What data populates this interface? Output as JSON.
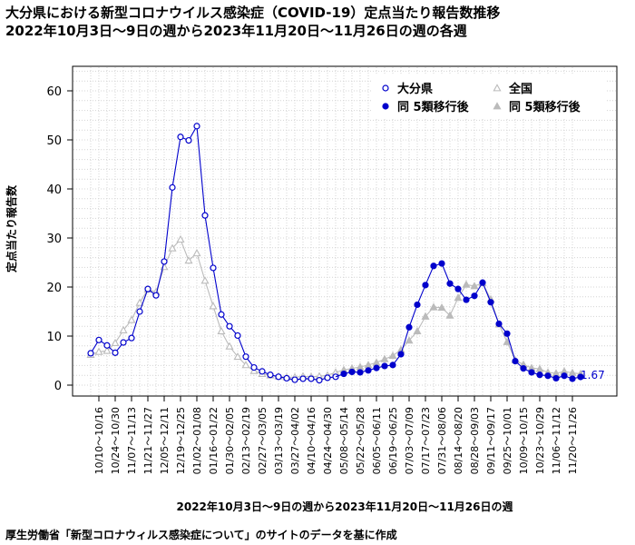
{
  "header": {
    "title_line1": "大分県における新型コロナウイルス感染症（COVID-19）定点当たり報告数推移",
    "title_line2": "2022年10月3日～9日の週から2023年11月20日～11月26日の週の各週"
  },
  "footer": {
    "source": "厚生労働省「新型コロナウィルス感染症について」のサイトのデータを基に作成"
  },
  "chart_data": {
    "type": "line",
    "title": "大分県における新型コロナウイルス感染症（COVID-19）定点当たり報告数推移",
    "subtitle": "2022年10月3日～9日の週から2023年11月20日～11月26日の週の各週",
    "xlabel": "2022年10月3日～9日の週から2023年11月20日～11月26日の週",
    "ylabel": "定点当たり報告数",
    "ylim": [
      -2,
      66
    ],
    "yticks": [
      0,
      10,
      20,
      30,
      40,
      50,
      60
    ],
    "grid": true,
    "legend_position": "top-right",
    "end_label": "1.67",
    "x_tick_labels": [
      "10/10～10/16",
      "10/24～10/30",
      "11/07～11/13",
      "11/21～11/27",
      "12/05～12/11",
      "12/19～12/25",
      "01/02～01/08",
      "01/16～01/22",
      "01/30～02/05",
      "02/13～02/19",
      "02/27～03/05",
      "03/13～03/19",
      "03/27～04/02",
      "04/10～04/16",
      "04/24～04/30",
      "05/08～05/14",
      "05/22～05/28",
      "06/05～06/11",
      "06/19～06/25",
      "07/03～07/09",
      "07/17～07/23",
      "07/31～08/06",
      "08/14～08/20",
      "08/28～09/03",
      "09/11～09/17",
      "09/25～10/01",
      "10/09～10/15",
      "10/23～10/29",
      "11/06～11/12",
      "11/20～11/26"
    ],
    "x_weeks": [
      "10/03～10/09",
      "10/10～10/16",
      "10/17～10/23",
      "10/24～10/30",
      "10/31～11/06",
      "11/07～11/13",
      "11/14～11/20",
      "11/21～11/27",
      "11/28～12/04",
      "12/05～12/11",
      "12/12～12/18",
      "12/19～12/25",
      "12/26～01/01",
      "01/02～01/08",
      "01/09～01/15",
      "01/16～01/22",
      "01/23～01/29",
      "01/30～02/05",
      "02/06～02/12",
      "02/13～02/19",
      "02/20～02/26",
      "02/27～03/05",
      "03/06～03/12",
      "03/13～03/19",
      "03/20～03/26",
      "03/27～04/02",
      "04/03～04/09",
      "04/10～04/16",
      "04/17～04/23",
      "04/24～04/30",
      "05/01～05/07",
      "05/08～05/14",
      "05/15～05/21",
      "05/22～05/28",
      "05/29～06/04",
      "06/05～06/11",
      "06/12～06/18",
      "06/19～06/25",
      "06/26～07/02",
      "07/03～07/09",
      "07/10～07/16",
      "07/17～07/23",
      "07/24～07/30",
      "07/31～08/06",
      "08/07～08/13",
      "08/14～08/20",
      "08/21～08/27",
      "08/28～09/03",
      "09/04～09/10",
      "09/11～09/17",
      "09/18～09/24",
      "09/25～10/01",
      "10/02～10/08",
      "10/09～10/15",
      "10/16～10/22",
      "10/23～10/29",
      "10/30～11/05",
      "11/06～11/12",
      "11/13～11/19",
      "11/20～11/26"
    ],
    "series": [
      {
        "name": "大分県",
        "color": "#0000cc",
        "marker": "circle-open",
        "period": "before",
        "values": [
          6.5,
          9.2,
          8.1,
          6.6,
          8.7,
          9.6,
          15.0,
          19.6,
          18.3,
          25.2,
          40.3,
          50.6,
          49.9,
          52.8,
          34.6,
          23.9,
          14.4,
          12.0,
          10.1,
          5.8,
          3.6,
          2.8,
          2.1,
          1.7,
          1.4,
          1.1,
          1.3,
          1.3,
          1.0,
          1.5,
          1.7
        ]
      },
      {
        "name": "同 5類移行後",
        "color": "#0000cc",
        "marker": "circle-filled",
        "period": "after",
        "values": [
          2.3,
          2.7,
          2.6,
          3.0,
          3.5,
          3.9,
          4.1,
          6.3,
          11.8,
          16.4,
          20.4,
          24.3,
          24.8,
          20.7,
          19.6,
          17.4,
          18.2,
          20.9,
          16.9,
          12.5,
          10.5,
          4.9,
          3.4,
          2.6,
          2.1,
          1.9,
          1.4,
          1.9,
          1.3,
          1.67
        ]
      },
      {
        "name": "全国",
        "color": "#bbbbbb",
        "marker": "triangle-open",
        "period": "before",
        "values": [
          6.2,
          6.8,
          7.0,
          8.6,
          11.2,
          13.3,
          16.8,
          19.5,
          19.0,
          24.1,
          27.9,
          29.7,
          25.4,
          26.9,
          21.3,
          16.1,
          11.0,
          7.9,
          5.8,
          4.1,
          2.9,
          2.3,
          2.0,
          1.8,
          1.6,
          1.6,
          1.8,
          1.7,
          1.8,
          2.0,
          2.6
        ]
      },
      {
        "name": "同 5類移行後",
        "color": "#bbbbbb",
        "marker": "triangle-filled",
        "period": "after",
        "values": [
          3.1,
          3.4,
          3.7,
          4.1,
          4.6,
          5.3,
          6.0,
          7.2,
          9.1,
          11.0,
          14.0,
          15.9,
          15.8,
          14.2,
          17.8,
          20.5,
          20.2,
          20.8,
          17.5,
          12.4,
          8.8,
          5.1,
          4.2,
          3.5,
          3.3,
          2.6,
          2.4,
          2.8,
          2.5,
          2.3
        ]
      }
    ]
  }
}
